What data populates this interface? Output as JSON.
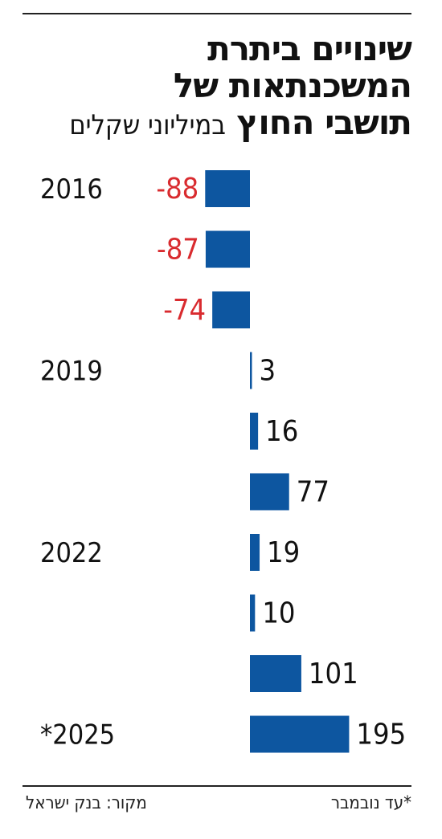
{
  "title": {
    "line1": "שינויים ביתרת",
    "line2": "המשכנתאות של",
    "line3": "תושבי החוץ",
    "subtitle": "במיליוני שקלים"
  },
  "footer": {
    "note": "*עד נובמבר",
    "source": "מקור: בנק ישראל"
  },
  "colors": {
    "bar": "#0d56a0",
    "negative_label": "#d92b2f",
    "positive_label": "#111111"
  },
  "chart_data": {
    "type": "bar",
    "orientation": "horizontal",
    "title": "שינויים ביתרת המשכנתאות של תושבי החוץ",
    "subtitle": "במיליוני שקלים",
    "categories": [
      "2016",
      "",
      "",
      "2019",
      "",
      "",
      "2022",
      "",
      "",
      "*2025"
    ],
    "values": [
      -88,
      -87,
      -74,
      3,
      16,
      77,
      19,
      10,
      101,
      195
    ],
    "value_labels": [
      "-88",
      "-87",
      "-74",
      "3",
      "16",
      "77",
      "19",
      "10",
      "101",
      "195"
    ],
    "grid": false,
    "legend": "none"
  }
}
